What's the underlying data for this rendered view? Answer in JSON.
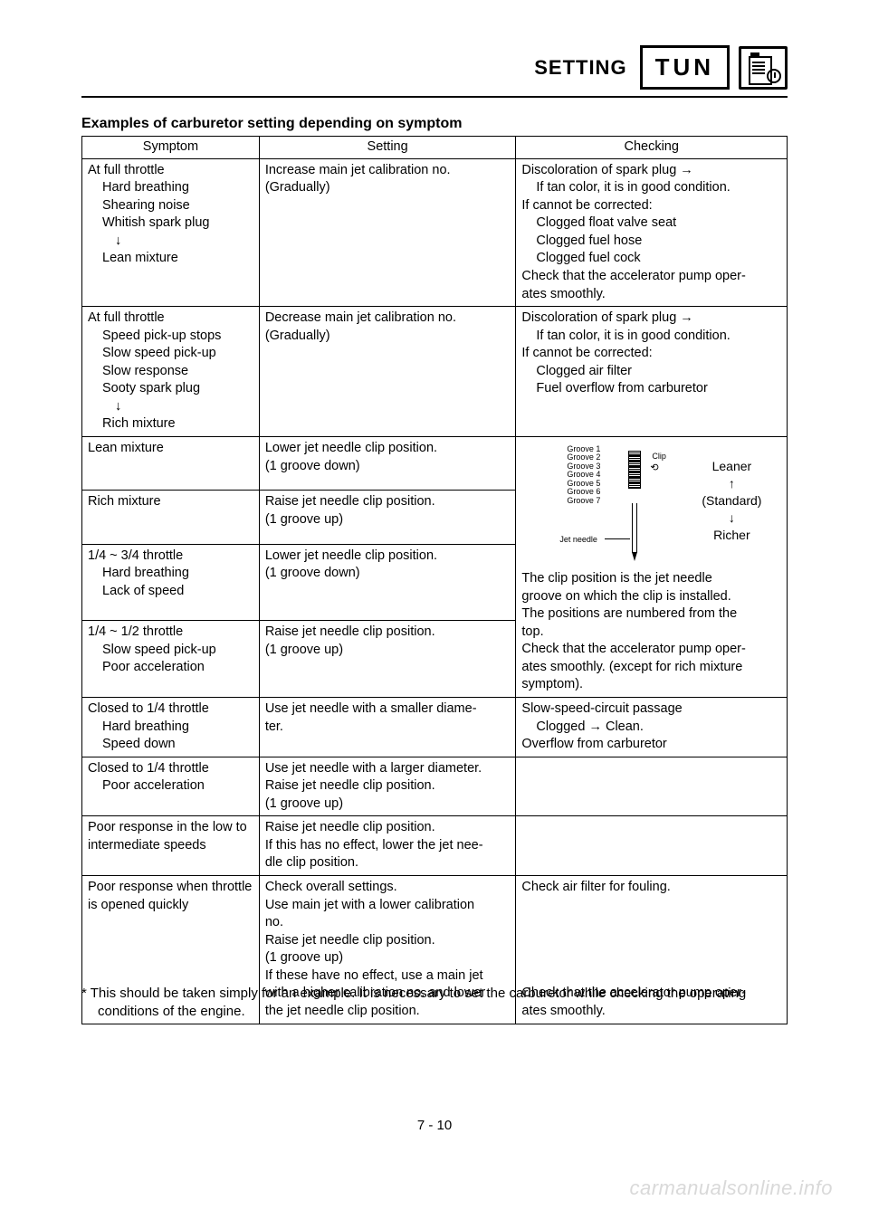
{
  "header": {
    "setting_label": "SETTING",
    "tun_label": "TUN"
  },
  "title": "Examples of carburetor setting depending on symptom",
  "table": {
    "columns": {
      "symptom": "Symptom",
      "setting": "Setting",
      "checking": "Checking"
    },
    "row1": {
      "sym_line1": "At full throttle",
      "sym_line2": "Hard breathing",
      "sym_line3": "Shearing noise",
      "sym_line4": "Whitish spark plug",
      "sym_arrow": "↓",
      "sym_line5": "Lean mixture",
      "set_line1": "Increase main jet calibration no.",
      "set_line2": "(Gradually)",
      "chk_line1": "Discoloration of spark plug →",
      "chk_line2": "If tan color, it is in good condition.",
      "chk_line3": "If cannot be corrected:",
      "chk_line4": "Clogged float valve seat",
      "chk_line5": "Clogged fuel hose",
      "chk_line6": "Clogged fuel cock",
      "chk_line7": "Check that the accelerator pump oper-",
      "chk_line8": "ates smoothly."
    },
    "row2": {
      "sym_line1": "At full throttle",
      "sym_line2": "Speed pick-up stops",
      "sym_line3": "Slow speed pick-up",
      "sym_line4": "Slow response",
      "sym_line5": "Sooty spark plug",
      "sym_arrow": "↓",
      "sym_line6": "Rich mixture",
      "set_line1": "Decrease main jet calibration no.",
      "set_line2": "(Gradually)",
      "chk_line1": "Discoloration of spark plug →",
      "chk_line2": "If tan color, it is in good condition.",
      "chk_line3": "If cannot be corrected:",
      "chk_line4": "Clogged air filter",
      "chk_line5": "Fuel overflow from carburetor"
    },
    "row3": {
      "sym": "Lean mixture",
      "set_line1": "Lower jet needle clip position.",
      "set_line2": "(1 groove down)"
    },
    "row4": {
      "sym": "Rich mixture",
      "set_line1": "Raise jet needle clip position.",
      "set_line2": "(1 groove up)"
    },
    "row5": {
      "sym_line1": "1/4 ~ 3/4 throttle",
      "sym_line2": "Hard breathing",
      "sym_line3": "Lack of speed",
      "set_line1": "Lower jet needle clip position.",
      "set_line2": "(1 groove down)"
    },
    "row6": {
      "sym_line1": "1/4 ~ 1/2 throttle",
      "sym_line2": "Slow speed pick-up",
      "sym_line3": "Poor acceleration",
      "set_line1": "Raise jet needle clip position.",
      "set_line2": "(1 groove up)"
    },
    "diagram": {
      "groove1": "Groove 1",
      "groove2": "Groove 2",
      "groove3": "Groove 3",
      "groove4": "Groove 4",
      "groove5": "Groove 5",
      "groove6": "Groove 6",
      "groove7": "Groove 7",
      "clip": "Clip",
      "jet_needle": "Jet needle",
      "leaner": "Leaner",
      "up_arrow": "↑",
      "standard": "(Standard)",
      "down_arrow": "↓",
      "richer": "Richer",
      "note1": "The clip position is the jet needle",
      "note2": "groove on which the clip is installed.",
      "note3": "The positions are numbered from the",
      "note4": "top.",
      "note5": "Check that the accelerator pump oper-",
      "note6": "ates smoothly. (except for rich mixture",
      "note7": "symptom)."
    },
    "row7": {
      "sym_line1": "Closed to 1/4 throttle",
      "sym_line2": "Hard breathing",
      "sym_line3": "Speed down",
      "set_line1": "Use jet needle with a smaller diame-",
      "set_line2": "ter.",
      "chk_line1": "Slow-speed-circuit passage",
      "chk_line2": "Clogged → Clean.",
      "chk_line3": "Overflow from carburetor"
    },
    "row8": {
      "sym_line1": "Closed to 1/4 throttle",
      "sym_line2": "Poor acceleration",
      "set_line1": "Use jet needle with a larger diameter.",
      "set_line2": "Raise jet needle clip position.",
      "set_line3": "(1 groove up)"
    },
    "row9": {
      "sym_line1": "Poor response in the low to",
      "sym_line2": "intermediate speeds",
      "set_line1": "Raise jet needle clip position.",
      "set_line2": "If this has no effect, lower the jet nee-",
      "set_line3": "dle clip position."
    },
    "row10": {
      "sym_line1": "Poor response when throttle",
      "sym_line2": "is opened quickly",
      "set_line1": "Check overall settings.",
      "set_line2": "Use main jet with a lower calibration",
      "set_line3": "no.",
      "set_line4": "Raise jet needle clip position.",
      "set_line5": "(1 groove up)",
      "set_line6": "If these have no effect, use a main jet",
      "set_line7": "with a higher calibration no. and lower",
      "set_line8": "the jet needle clip position.",
      "chk_line1": "Check air filter for fouling.",
      "chk_line2": "Check that the accelerator pump oper-",
      "chk_line3": "ates smoothly."
    }
  },
  "footnote": "*  This should be taken simply for an example. It is necessary to set the carburetor while checking the operating conditions of the engine.",
  "page_number": "7 - 10",
  "watermark": "carmanualsonline.info"
}
